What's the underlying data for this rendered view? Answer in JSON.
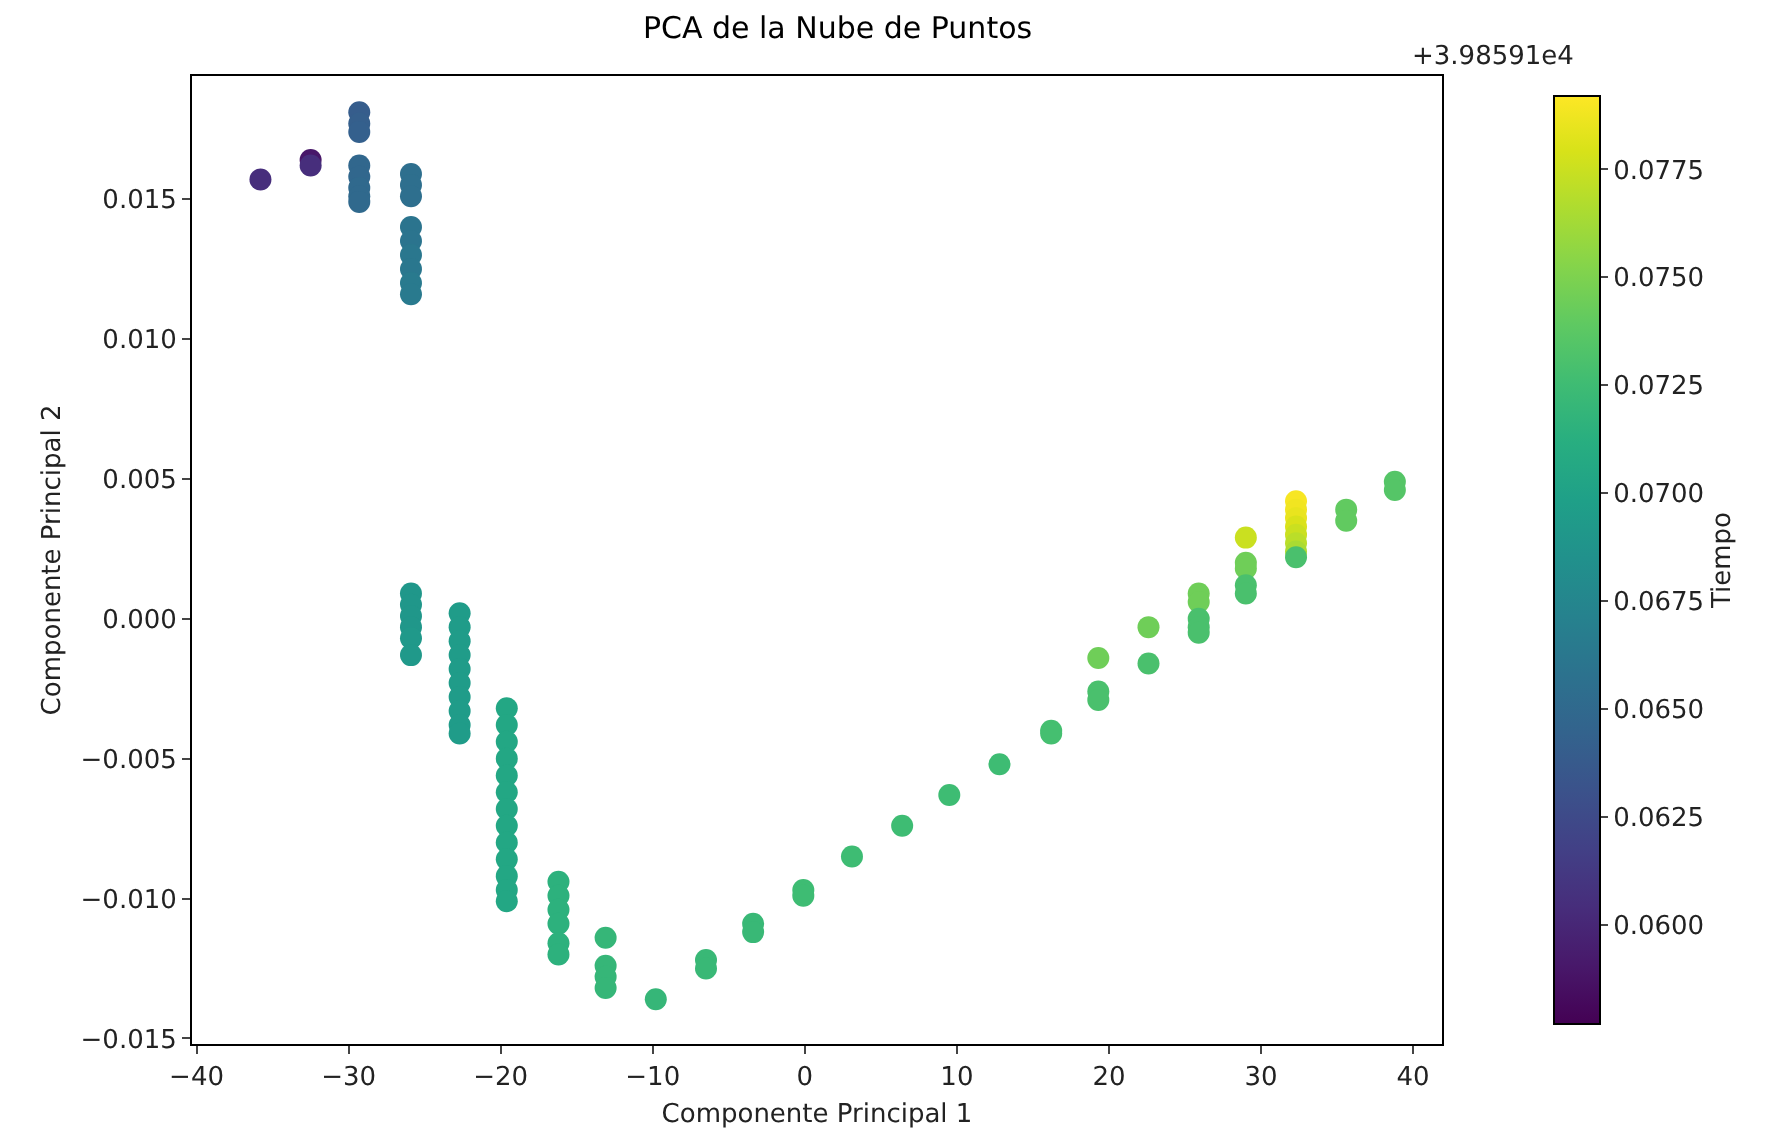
{
  "chart_data": {
    "type": "scatter",
    "title": "PCA de la Nube de Puntos",
    "xlabel": "Componente Principal 1",
    "ylabel": "Componente Principal 2",
    "clabel": "Tiempo",
    "annotations": [
      "+3.98591e4"
    ],
    "marker": "circle",
    "grid": false,
    "xlim": [
      -40.3,
      41.9
    ],
    "ylim": [
      -0.0152,
      0.0194
    ],
    "xticks": [
      {
        "value": -40,
        "label": "−40"
      },
      {
        "value": -30,
        "label": "−30"
      },
      {
        "value": -20,
        "label": "−20"
      },
      {
        "value": -10,
        "label": "−10"
      },
      0,
      10,
      20,
      30,
      40
    ],
    "yticks": [
      {
        "value": -0.015,
        "label": "−0.015"
      },
      {
        "value": -0.01,
        "label": "−0.010"
      },
      {
        "value": -0.005,
        "label": "−0.005"
      },
      {
        "value": 0,
        "label": "0.000"
      },
      {
        "value": 0.005,
        "label": "0.005"
      },
      {
        "value": 0.01,
        "label": "0.010"
      },
      {
        "value": 0.015,
        "label": "0.015"
      }
    ],
    "clim": [
      0.0577,
      0.0792
    ],
    "cticks": [
      {
        "value": 0.06,
        "label": "0.0600"
      },
      {
        "value": 0.0625,
        "label": "0.0625"
      },
      {
        "value": 0.065,
        "label": "0.0650"
      },
      {
        "value": 0.0675,
        "label": "0.0675"
      },
      {
        "value": 0.07,
        "label": "0.0700"
      },
      {
        "value": 0.0725,
        "label": "0.0725"
      },
      {
        "value": 0.075,
        "label": "0.0750"
      },
      {
        "value": 0.0775,
        "label": "0.0775"
      }
    ],
    "x": [
      -35.8,
      -32.5,
      -32.5,
      -29.3,
      -29.3,
      -29.3,
      -29.3,
      -29.3,
      -29.3,
      -29.3,
      -29.3,
      -25.9,
      -25.9,
      -25.9,
      -25.9,
      -25.9,
      -25.9,
      -25.9,
      -25.9,
      -25.9,
      -25.9,
      -25.9,
      -25.9,
      -25.9,
      -25.9,
      -25.9,
      -22.7,
      -22.7,
      -22.7,
      -22.7,
      -22.7,
      -22.7,
      -22.7,
      -22.7,
      -22.7,
      -22.7,
      -19.6,
      -19.6,
      -19.6,
      -19.6,
      -19.6,
      -19.6,
      -19.6,
      -19.6,
      -19.6,
      -19.6,
      -19.6,
      -19.6,
      -19.6,
      -16.2,
      -16.2,
      -16.2,
      -16.2,
      -16.2,
      -16.2,
      -13.1,
      -13.1,
      -13.1,
      -13.1,
      -9.8,
      -6.5,
      -6.5,
      -3.4,
      -3.4,
      -0.1,
      -0.1,
      3.1,
      6.4,
      9.5,
      12.8,
      16.2,
      16.2,
      19.3,
      19.3,
      19.3,
      22.6,
      22.6,
      25.9,
      25.9,
      25.9,
      25.9,
      25.9,
      29.0,
      29.0,
      29.0,
      29.0,
      29.0,
      32.3,
      32.3,
      32.3,
      32.3,
      32.3,
      32.3,
      32.3,
      32.3,
      35.6,
      35.6,
      38.8,
      38.8
    ],
    "values": [
      0.0157,
      0.0164,
      0.0162,
      0.0181,
      0.0177,
      0.0174,
      0.0162,
      0.0158,
      0.0154,
      0.0151,
      0.0149,
      0.0159,
      0.0155,
      0.0151,
      0.014,
      0.0135,
      0.013,
      0.0125,
      0.012,
      0.0116,
      0.0009,
      0.0005,
      0.0001,
      -0.0003,
      -0.0007,
      -0.0013,
      0.0002,
      -0.0003,
      -0.0008,
      -0.0013,
      -0.0018,
      -0.0023,
      -0.0028,
      -0.0033,
      -0.0038,
      -0.0041,
      -0.0032,
      -0.0038,
      -0.0044,
      -0.005,
      -0.0056,
      -0.0062,
      -0.0068,
      -0.0074,
      -0.008,
      -0.0086,
      -0.0092,
      -0.0097,
      -0.0101,
      -0.0094,
      -0.0099,
      -0.0104,
      -0.0109,
      -0.0116,
      -0.012,
      -0.0114,
      -0.0124,
      -0.0128,
      -0.0132,
      -0.0136,
      -0.0122,
      -0.0125,
      -0.0109,
      -0.0112,
      -0.0097,
      -0.0099,
      -0.0085,
      -0.0074,
      -0.0063,
      -0.0052,
      -0.004,
      -0.0041,
      -0.0014,
      -0.0026,
      -0.0029,
      -0.0003,
      -0.0016,
      0.0009,
      0.0006,
      0.0,
      -0.0003,
      -0.0005,
      0.0029,
      0.002,
      0.0018,
      0.0012,
      0.0009,
      0.0042,
      0.0039,
      0.0036,
      0.0033,
      0.003,
      0.0027,
      0.0024,
      0.0022,
      0.0039,
      0.0035,
      0.0049,
      0.0046
    ],
    "cvalues": [
      0.0605,
      0.059,
      0.0605,
      0.064,
      0.0641,
      0.0642,
      0.0648,
      0.0648,
      0.065,
      0.065,
      0.065,
      0.0655,
      0.0655,
      0.0655,
      0.066,
      0.066,
      0.0662,
      0.0662,
      0.0665,
      0.0665,
      0.069,
      0.069,
      0.069,
      0.069,
      0.0692,
      0.0692,
      0.0695,
      0.0695,
      0.0695,
      0.0695,
      0.0695,
      0.0695,
      0.0695,
      0.0695,
      0.0695,
      0.0695,
      0.0705,
      0.0705,
      0.0705,
      0.0705,
      0.0705,
      0.0705,
      0.0705,
      0.0705,
      0.0705,
      0.0705,
      0.0705,
      0.0705,
      0.0705,
      0.0715,
      0.0715,
      0.0715,
      0.0715,
      0.0715,
      0.0715,
      0.072,
      0.072,
      0.072,
      0.072,
      0.072,
      0.0722,
      0.0722,
      0.0722,
      0.0722,
      0.0725,
      0.0725,
      0.0725,
      0.0725,
      0.0725,
      0.0725,
      0.0728,
      0.0728,
      0.0745,
      0.073,
      0.073,
      0.0745,
      0.073,
      0.0745,
      0.0745,
      0.073,
      0.073,
      0.073,
      0.0775,
      0.0745,
      0.0745,
      0.073,
      0.073,
      0.079,
      0.0788,
      0.0785,
      0.078,
      0.0775,
      0.077,
      0.0765,
      0.073,
      0.074,
      0.074,
      0.0735,
      0.0735
    ]
  }
}
